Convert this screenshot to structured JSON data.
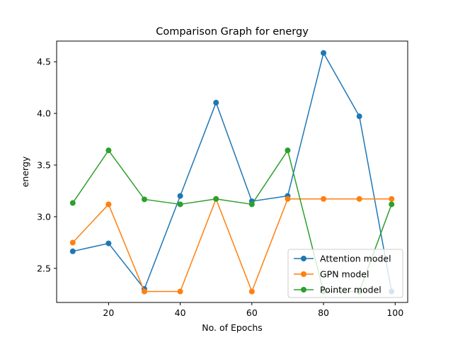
{
  "chart_data": {
    "type": "line",
    "title": "Comparison Graph for energy",
    "xlabel": "No. of Epochs",
    "ylabel": "energy",
    "xlim": [
      5.5,
      103.5
    ],
    "ylim": [
      2.17,
      4.7
    ],
    "xticks": [
      20,
      40,
      60,
      80,
      100
    ],
    "yticks": [
      2.5,
      3.0,
      3.5,
      4.0,
      4.5
    ],
    "xtick_labels": [
      "20",
      "40",
      "60",
      "80",
      "100"
    ],
    "ytick_labels": [
      "2.5",
      "3.0",
      "3.5",
      "4.0",
      "4.5"
    ],
    "grid": false,
    "legend_position": "lower-right",
    "series": [
      {
        "name": "Attention model",
        "color": "#1f77b4",
        "x": [
          10,
          20,
          30,
          40,
          50,
          60,
          70,
          80,
          90,
          99
        ],
        "y": [
          2.665,
          2.742,
          2.301,
          3.201,
          4.104,
          3.15,
          3.201,
          4.585,
          3.972,
          2.276
        ]
      },
      {
        "name": "GPN model",
        "color": "#ff7f0e",
        "x": [
          10,
          20,
          30,
          40,
          50,
          60,
          70,
          80,
          90,
          99
        ],
        "y": [
          2.749,
          3.12,
          2.276,
          2.276,
          3.172,
          2.276,
          3.172,
          3.172,
          3.172,
          3.172
        ]
      },
      {
        "name": "Pointer model",
        "color": "#2ca02c",
        "x": [
          10,
          20,
          30,
          40,
          50,
          60,
          70,
          80,
          90,
          99
        ],
        "y": [
          3.133,
          3.642,
          3.168,
          3.12,
          3.172,
          3.12,
          3.642,
          2.276,
          2.276,
          3.12
        ]
      }
    ]
  }
}
